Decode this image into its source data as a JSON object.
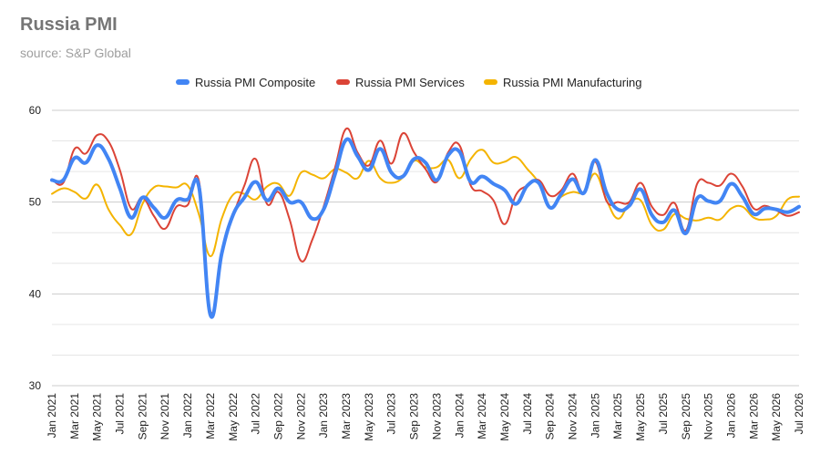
{
  "title": "Russia PMI",
  "subtitle": "source: S&P Global",
  "chart_data": {
    "type": "line",
    "title": "Russia PMI",
    "subtitle": "source: S&P Global",
    "xlabel": "",
    "ylabel": "",
    "ylim": [
      30,
      60
    ],
    "yticks": [
      30,
      40,
      50,
      60
    ],
    "grid": true,
    "legend_position": "top",
    "x": [
      "Jan 2021",
      "Feb 2021",
      "Mar 2021",
      "Apr 2021",
      "May 2021",
      "Jun 2021",
      "Jul 2021",
      "Aug 2021",
      "Sep 2021",
      "Oct 2021",
      "Nov 2021",
      "Dec 2021",
      "Jan 2022",
      "Feb 2022",
      "Mar 2022",
      "Apr 2022",
      "May 2022",
      "Jun 2022",
      "Jul 2022",
      "Aug 2022",
      "Sep 2022",
      "Oct 2022",
      "Nov 2022",
      "Dec 2022",
      "Jan 2023",
      "Feb 2023",
      "Mar 2023",
      "Apr 2023",
      "May 2023",
      "Jun 2023",
      "Jul 2023",
      "Aug 2023",
      "Sep 2023",
      "Oct 2023",
      "Nov 2023",
      "Dec 2023",
      "Jan 2024",
      "Feb 2024",
      "Mar 2024",
      "Apr 2024",
      "May 2024",
      "Jun 2024",
      "Jul 2024",
      "Aug 2024",
      "Sep 2024",
      "Oct 2024",
      "Nov 2024",
      "Dec 2024",
      "Jan 2025",
      "Feb 2025",
      "Mar 2025",
      "Apr 2025",
      "May 2025",
      "Jun 2025",
      "Jul 2025",
      "Aug 2025",
      "Sep 2025",
      "Oct 2025",
      "Nov 2025",
      "Dec 2025",
      "Jan 2026",
      "Feb 2026",
      "Mar 2026",
      "Apr 2026",
      "May 2026",
      "Jun 2026",
      "Jul 2026"
    ],
    "x_tick_labels": [
      "Jan 2021",
      "Mar 2021",
      "May 2021",
      "Jul 2021",
      "Sep 2021",
      "Nov 2021",
      "Jan 2022",
      "Mar 2022",
      "May 2022",
      "Jul 2022",
      "Sep 2022",
      "Nov 2022",
      "Jan 2023",
      "Mar 2023",
      "May 2023",
      "Jul 2023",
      "Sep 2023",
      "Nov 2023",
      "Jan 2024",
      "Mar 2024",
      "May 2024",
      "Jul 2024",
      "Sep 2024",
      "Nov 2024",
      "Jan 2025",
      "Mar 2025",
      "May 2025",
      "Jul 2025",
      "Sep 2025",
      "Nov 2025",
      "Jan 2026",
      "Mar 2026",
      "May 2026",
      "Jul 2026"
    ],
    "series": [
      {
        "name": "Russia PMI Composite",
        "color": "#4285f4",
        "values": [
          52.4,
          52.4,
          54.8,
          54.3,
          56.2,
          54.7,
          51.5,
          48.3,
          50.5,
          49.4,
          48.3,
          50.2,
          50.3,
          51.6,
          37.7,
          44.4,
          48.6,
          50.5,
          52.2,
          50.2,
          51.5,
          50.0,
          50.0,
          48.2,
          49.2,
          53.0,
          56.8,
          55.0,
          53.5,
          55.8,
          53.2,
          52.8,
          54.7,
          54.3,
          52.4,
          55.1,
          55.5,
          52.2,
          52.8,
          52.0,
          51.3,
          49.8,
          51.8,
          52.1,
          49.4,
          50.9,
          52.5,
          51.0,
          54.6,
          51.0,
          49.2,
          49.6,
          51.4,
          48.6,
          47.8,
          49.1,
          46.6,
          50.4,
          50.1,
          50.1,
          52.0,
          50.6,
          48.7,
          49.3,
          49.2,
          48.9,
          49.5
        ]
      },
      {
        "name": "Russia PMI Services",
        "color": "#db4437",
        "values": [
          52.5,
          52.1,
          55.8,
          55.3,
          57.3,
          56.6,
          53.5,
          49.3,
          50.5,
          48.5,
          47.1,
          49.5,
          49.7,
          52.2,
          38.1,
          44.5,
          48.5,
          51.8,
          54.7,
          49.8,
          51.1,
          48.1,
          43.6,
          45.9,
          49.5,
          53.7,
          58.0,
          55.4,
          54.0,
          56.7,
          54.2,
          57.5,
          55.4,
          53.6,
          52.2,
          55.4,
          56.2,
          51.8,
          51.2,
          50.2,
          47.6,
          50.8,
          51.8,
          52.4,
          50.7,
          51.3,
          53.1,
          51.0,
          54.4,
          50.1,
          50.0,
          50.0,
          52.1,
          49.5,
          48.6,
          49.9,
          46.9,
          52.0,
          52.1,
          51.8,
          53.1,
          51.7,
          49.3,
          49.6,
          49.1,
          48.5,
          48.9
        ]
      },
      {
        "name": "Russia PMI Manufacturing",
        "color": "#f4b400",
        "values": [
          50.9,
          51.5,
          51.1,
          50.4,
          51.9,
          49.2,
          47.5,
          46.5,
          49.8,
          51.6,
          51.7,
          51.6,
          51.8,
          48.6,
          44.1,
          48.2,
          50.8,
          50.9,
          50.3,
          51.7,
          52.0,
          50.7,
          53.2,
          53.0,
          52.6,
          53.6,
          53.2,
          52.6,
          54.5,
          52.6,
          52.1,
          52.7,
          54.5,
          53.8,
          53.8,
          54.6,
          52.6,
          54.7,
          55.7,
          54.3,
          54.4,
          54.9,
          53.6,
          52.1,
          49.5,
          50.6,
          51.1,
          51.1,
          53.1,
          50.2,
          48.2,
          49.8,
          50.2,
          47.5,
          47.0,
          48.7,
          48.2,
          48.0,
          48.3,
          48.1,
          49.3,
          49.5,
          48.3,
          48.1,
          48.5,
          50.3,
          50.6
        ]
      }
    ]
  }
}
